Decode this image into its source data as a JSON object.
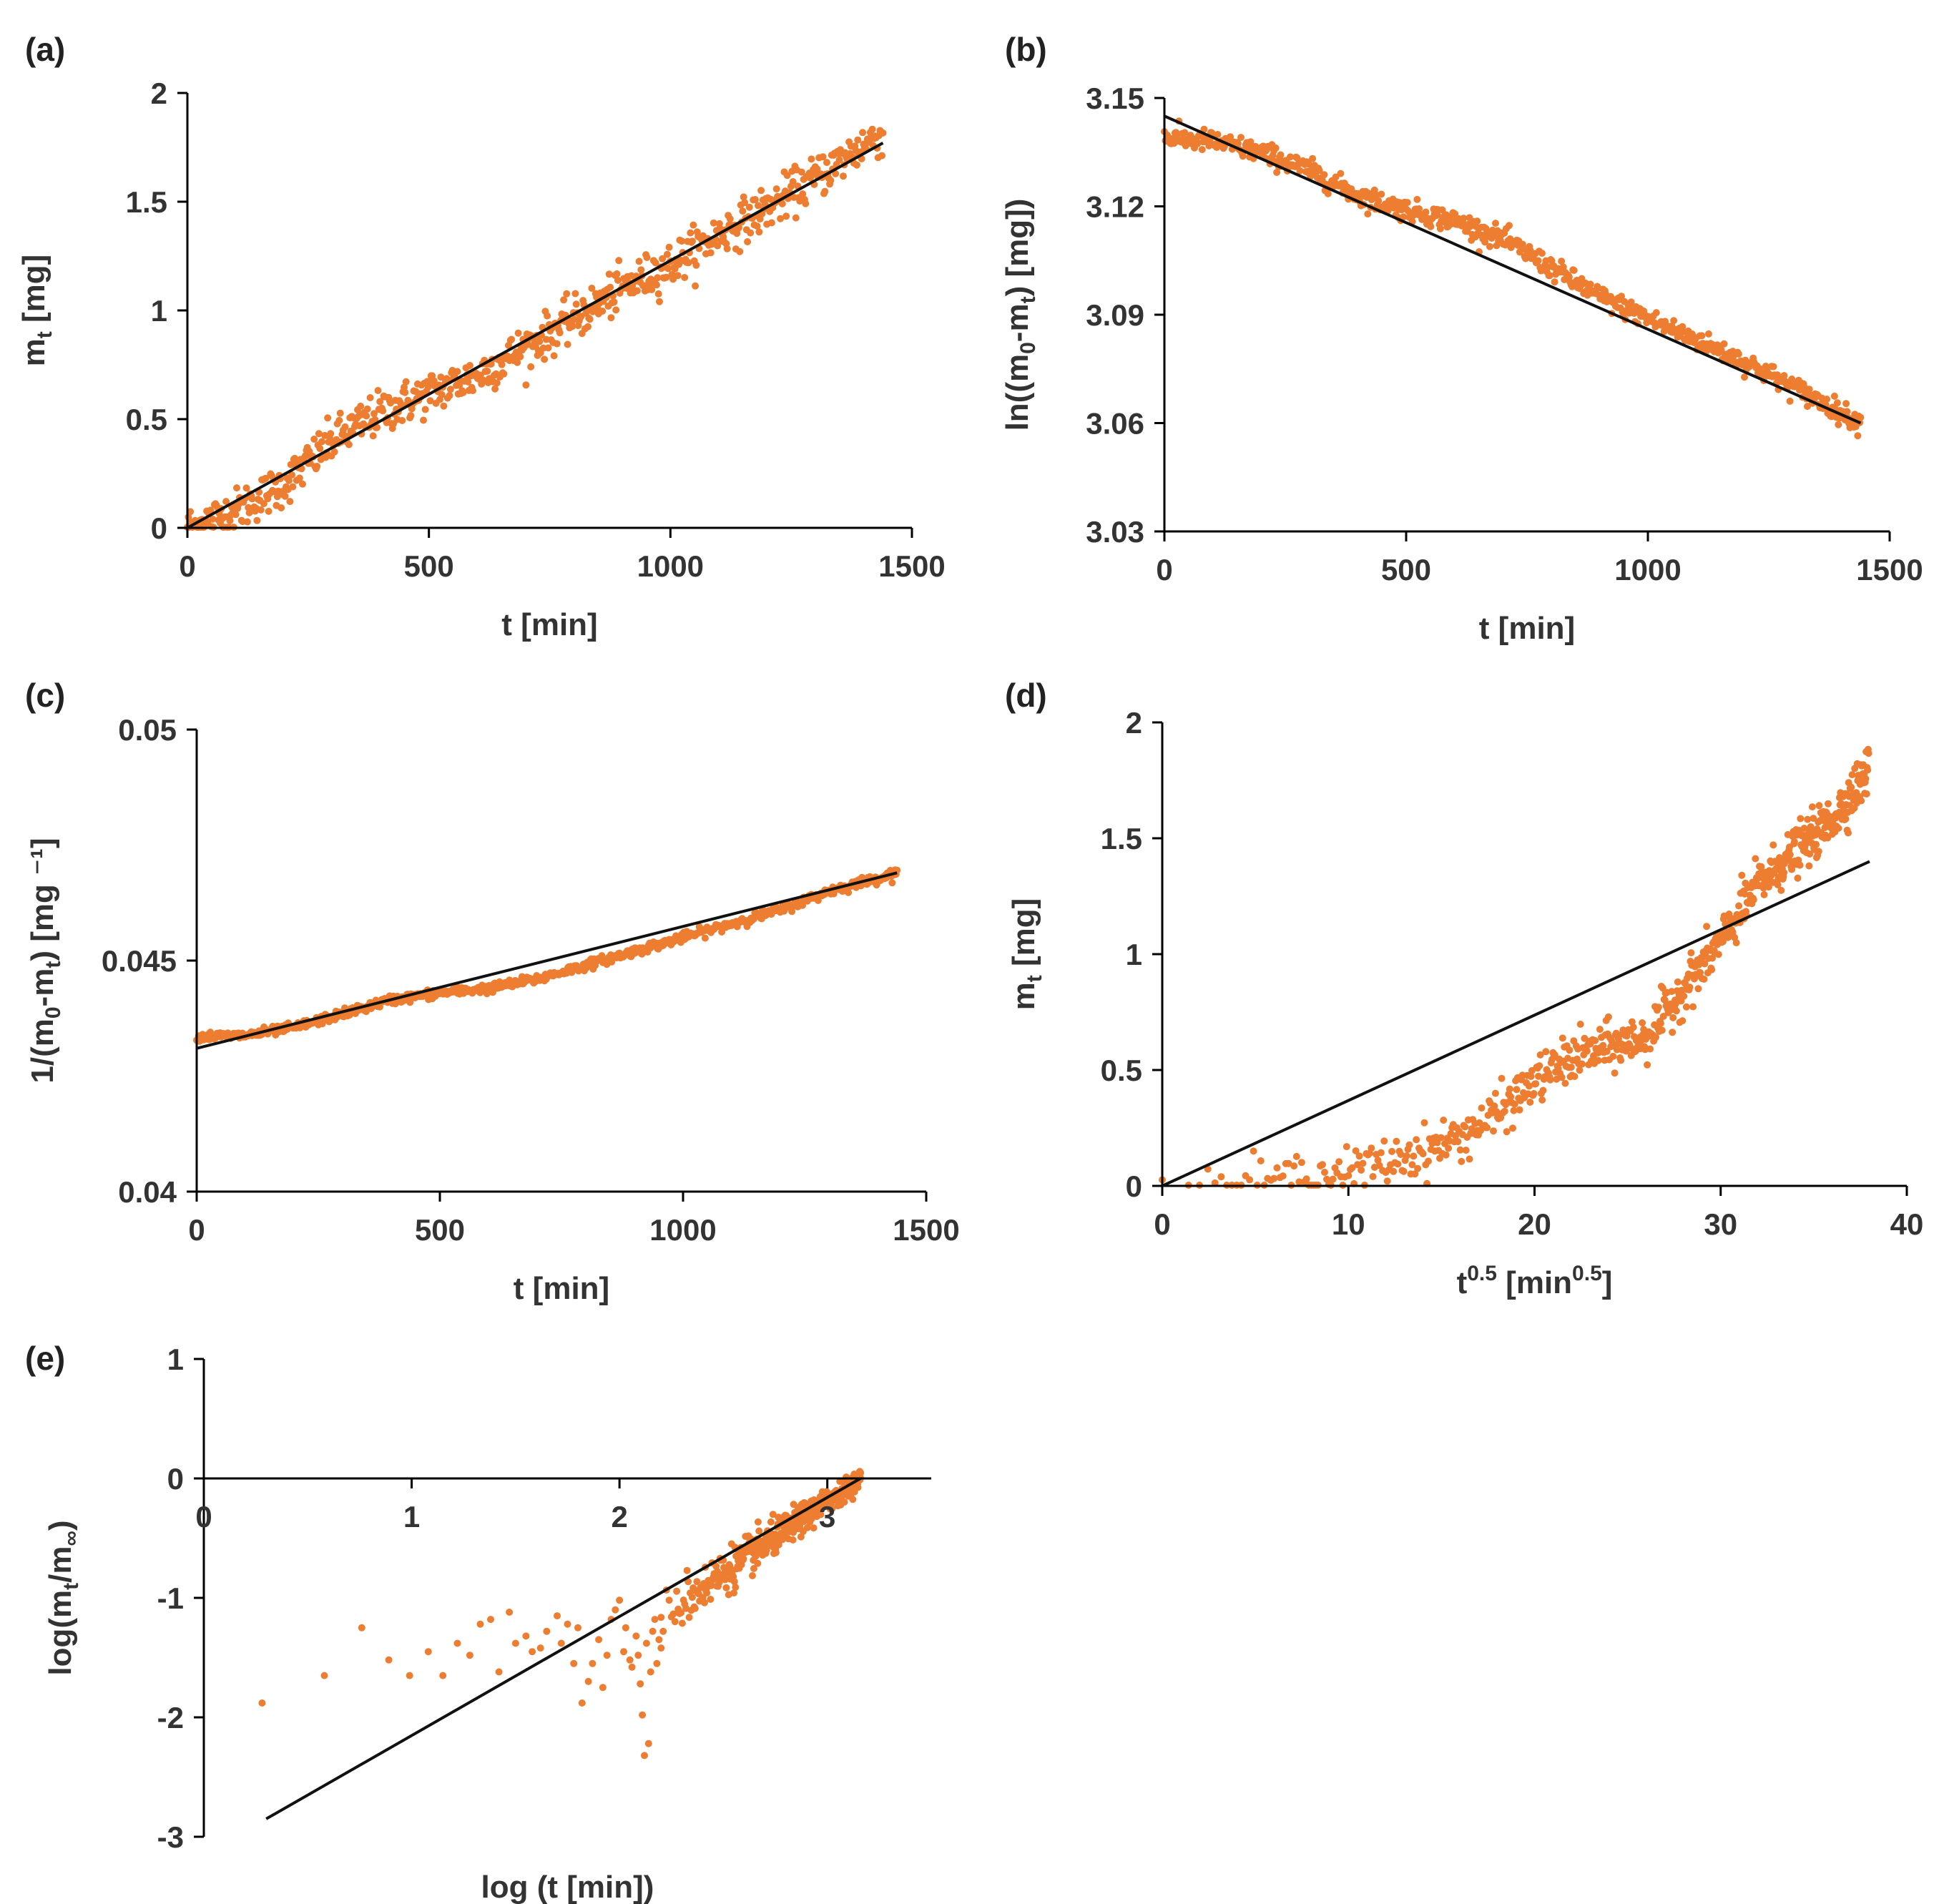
{
  "colors": {
    "points": "#ED7D31",
    "fit": "#111111",
    "axis": "#000000"
  },
  "chart_data": [
    {
      "id": "a",
      "type": "scatter",
      "panel_label": "(a)",
      "xlabel": "t [min]",
      "ylabel_main": "m",
      "ylabel_sub": "t",
      "ylabel_tail": " [mg]",
      "xlim": [
        0,
        1500
      ],
      "ylim": [
        0,
        2
      ],
      "xticks": [
        0,
        500,
        1000,
        1500
      ],
      "xtick_labels": [
        "0",
        "500",
        "1000",
        "1500"
      ],
      "yticks": [
        0,
        0.5,
        1,
        1.5,
        2
      ],
      "ytick_labels": [
        "0",
        "0.5",
        "1",
        "1.5",
        "2"
      ],
      "x_axis_at": 0,
      "fit": {
        "x": [
          0,
          1440
        ],
        "y": [
          0,
          1.77
        ]
      },
      "series": [
        {
          "name": "measured",
          "t_range": [
            0,
            1440
          ],
          "n": 720,
          "xy": [
            [
              0,
              0.0
            ],
            [
              100,
              0.08
            ],
            [
              200,
              0.2
            ],
            [
              300,
              0.4
            ],
            [
              400,
              0.53
            ],
            [
              500,
              0.62
            ],
            [
              600,
              0.7
            ],
            [
              700,
              0.83
            ],
            [
              800,
              0.96
            ],
            [
              900,
              1.1
            ],
            [
              1000,
              1.21
            ],
            [
              1100,
              1.35
            ],
            [
              1200,
              1.47
            ],
            [
              1300,
              1.61
            ],
            [
              1440,
              1.82
            ]
          ],
          "noise": 0.05,
          "x_transform": "t"
        }
      ]
    },
    {
      "id": "b",
      "type": "scatter",
      "panel_label": "(b)",
      "xlabel": "t [min]",
      "ylabel_main": "ln((m",
      "ylabel_sub": "0",
      "ylabel_mid": "-m",
      "ylabel_sub2": "t",
      "ylabel_tail": ") [mg])",
      "xlim": [
        0,
        1500
      ],
      "ylim": [
        3.03,
        3.15
      ],
      "xticks": [
        0,
        500,
        1000,
        1500
      ],
      "xtick_labels": [
        "0",
        "500",
        "1000",
        "1500"
      ],
      "yticks": [
        3.03,
        3.06,
        3.09,
        3.12,
        3.15
      ],
      "ytick_labels": [
        "3.03",
        "3.06",
        "3.09",
        "3.12",
        "3.15"
      ],
      "x_axis_at": 3.03,
      "fit": {
        "x": [
          0,
          1440
        ],
        "y": [
          3.145,
          3.06
        ]
      },
      "series": [
        {
          "name": "measured",
          "t_range": [
            0,
            1440
          ],
          "n": 720,
          "xy": [
            [
              0,
              3.139
            ],
            [
              100,
              3.138
            ],
            [
              200,
              3.135
            ],
            [
              300,
              3.13
            ],
            [
              400,
              3.123
            ],
            [
              500,
              3.119
            ],
            [
              600,
              3.116
            ],
            [
              700,
              3.111
            ],
            [
              800,
              3.103
            ],
            [
              900,
              3.095
            ],
            [
              1000,
              3.089
            ],
            [
              1100,
              3.083
            ],
            [
              1200,
              3.077
            ],
            [
              1300,
              3.07
            ],
            [
              1440,
              3.06
            ]
          ],
          "noise": 0.0015,
          "x_transform": "t"
        }
      ]
    },
    {
      "id": "c",
      "type": "scatter",
      "panel_label": "(c)",
      "xlabel": "t [min]",
      "ylabel_main": "1/(m",
      "ylabel_sub": "0",
      "ylabel_mid": "-m",
      "ylabel_sub2": "t",
      "ylabel_tail": ")  [mg ⁻¹]",
      "xlim": [
        0,
        1500
      ],
      "ylim": [
        0.04,
        0.05
      ],
      "xticks": [
        0,
        500,
        1000,
        1500
      ],
      "xtick_labels": [
        "0",
        "500",
        "1000",
        "1500"
      ],
      "yticks": [
        0.04,
        0.045,
        0.05
      ],
      "ytick_labels": [
        "0.04",
        "0.045",
        "0.05"
      ],
      "x_axis_at": 0.04,
      "fit": {
        "x": [
          0,
          1440
        ],
        "y": [
          0.0431,
          0.0469
        ]
      },
      "series": [
        {
          "name": "measured",
          "t_range": [
            0,
            1440
          ],
          "n": 720,
          "xy": [
            [
              0,
              0.04335
            ],
            [
              100,
              0.04338
            ],
            [
              200,
              0.04355
            ],
            [
              300,
              0.04385
            ],
            [
              400,
              0.04415
            ],
            [
              500,
              0.0443
            ],
            [
              600,
              0.0444
            ],
            [
              700,
              0.0446
            ],
            [
              800,
              0.0449
            ],
            [
              900,
              0.0452
            ],
            [
              1000,
              0.0455
            ],
            [
              1100,
              0.0458
            ],
            [
              1200,
              0.0461
            ],
            [
              1300,
              0.0465
            ],
            [
              1440,
              0.0469
            ]
          ],
          "noise": 5e-05,
          "x_transform": "t"
        }
      ]
    },
    {
      "id": "d",
      "type": "scatter",
      "panel_label": "(d)",
      "xlabel_main": "t",
      "xlabel_sup": "0.5",
      "xlabel_mid": " [min",
      "xlabel_sup2": "0.5",
      "xlabel_tail": "]",
      "ylabel_main": "m",
      "ylabel_sub": "t",
      "ylabel_tail": " [mg]",
      "xlim": [
        0,
        40
      ],
      "ylim": [
        0,
        2
      ],
      "xticks": [
        0,
        10,
        20,
        30,
        40
      ],
      "xtick_labels": [
        "0",
        "10",
        "20",
        "30",
        "40"
      ],
      "yticks": [
        0,
        0.5,
        1,
        1.5,
        2
      ],
      "ytick_labels": [
        "0",
        "0.5",
        "1",
        "1.5",
        "2"
      ],
      "x_axis_at": 0,
      "fit": {
        "x": [
          0,
          38
        ],
        "y": [
          0,
          1.4
        ]
      },
      "series": [
        {
          "name": "measured",
          "t_range": [
            0,
            1440
          ],
          "n": 720,
          "xy": [
            [
              0,
              0.0
            ],
            [
              5,
              0.02
            ],
            [
              10,
              0.06
            ],
            [
              12,
              0.1
            ],
            [
              14,
              0.15
            ],
            [
              16,
              0.21
            ],
            [
              18,
              0.31
            ],
            [
              20,
              0.45
            ],
            [
              22,
              0.55
            ],
            [
              24,
              0.6
            ],
            [
              26,
              0.64
            ],
            [
              28,
              0.85
            ],
            [
              30,
              1.05
            ],
            [
              32,
              1.3
            ],
            [
              34,
              1.44
            ],
            [
              36,
              1.58
            ],
            [
              38,
              1.8
            ]
          ],
          "noise": 0.05,
          "x_transform": "sqrt"
        }
      ]
    },
    {
      "id": "e",
      "type": "scatter",
      "panel_label": "(e)",
      "xlabel": "log (t [min])",
      "ylabel_main": "log(m",
      "ylabel_sub": "t",
      "ylabel_mid": "/m",
      "ylabel_sub2": "∞",
      "ylabel_tail": ")",
      "xlim": [
        0,
        3.5
      ],
      "ylim": [
        -3,
        1
      ],
      "xticks": [
        0,
        1,
        2,
        3
      ],
      "xtick_labels": [
        "0",
        "1",
        "2",
        "3"
      ],
      "yticks": [
        -3,
        -2,
        -1,
        0,
        1
      ],
      "ytick_labels": [
        "-3",
        "-2",
        "-1",
        "0",
        "1"
      ],
      "x_axis_at": 0,
      "fit": {
        "x": [
          0.3,
          3.16
        ],
        "y": [
          -2.85,
          0
        ]
      },
      "series": [
        {
          "name": "measured",
          "points": [
            [
              0.28,
              -1.88
            ],
            [
              0.58,
              -1.65
            ],
            [
              0.76,
              -1.25
            ],
            [
              0.89,
              -1.52
            ],
            [
              0.99,
              -1.65
            ],
            [
              1.08,
              -1.45
            ],
            [
              1.15,
              -1.65
            ],
            [
              1.22,
              -1.38
            ],
            [
              1.28,
              -1.48
            ],
            [
              1.33,
              -1.22
            ],
            [
              1.38,
              -1.18
            ],
            [
              1.42,
              -1.62
            ],
            [
              1.47,
              -1.12
            ],
            [
              1.5,
              -1.38
            ],
            [
              1.55,
              -1.32
            ],
            [
              1.58,
              -1.45
            ],
            [
              1.62,
              -1.42
            ],
            [
              1.65,
              -1.28
            ],
            [
              1.7,
              -1.15
            ],
            [
              1.72,
              -1.38
            ],
            [
              1.75,
              -1.22
            ],
            [
              1.78,
              -1.55
            ],
            [
              1.8,
              -1.25
            ],
            [
              1.82,
              -1.88
            ],
            [
              1.85,
              -1.7
            ],
            [
              1.87,
              -1.55
            ],
            [
              1.9,
              -1.35
            ],
            [
              1.92,
              -1.75
            ],
            [
              1.94,
              -1.48
            ],
            [
              1.96,
              -1.18
            ],
            [
              1.98,
              -1.1
            ],
            [
              2.0,
              -1.02
            ],
            [
              2.02,
              -1.45
            ],
            [
              2.03,
              -1.25
            ],
            [
              2.05,
              -1.52
            ],
            [
              2.06,
              -1.58
            ],
            [
              2.08,
              -1.32
            ],
            [
              2.09,
              -1.48
            ],
            [
              2.1,
              -1.72
            ],
            [
              2.11,
              -1.98
            ],
            [
              2.12,
              -2.32
            ],
            [
              2.13,
              -1.38
            ],
            [
              2.14,
              -2.22
            ],
            [
              2.15,
              -1.62
            ],
            [
              2.16,
              -1.28
            ],
            [
              2.17,
              -1.18
            ],
            [
              2.18,
              -1.55
            ],
            [
              2.19,
              -1.35
            ],
            [
              2.2,
              -1.42
            ],
            [
              2.21,
              -1.28
            ]
          ],
          "dense": {
            "x_range": [
              2.2,
              3.16
            ],
            "y_at_start": -1.15,
            "y_at_end": 0.0,
            "n": 420,
            "noise": 0.12
          }
        }
      ]
    }
  ]
}
